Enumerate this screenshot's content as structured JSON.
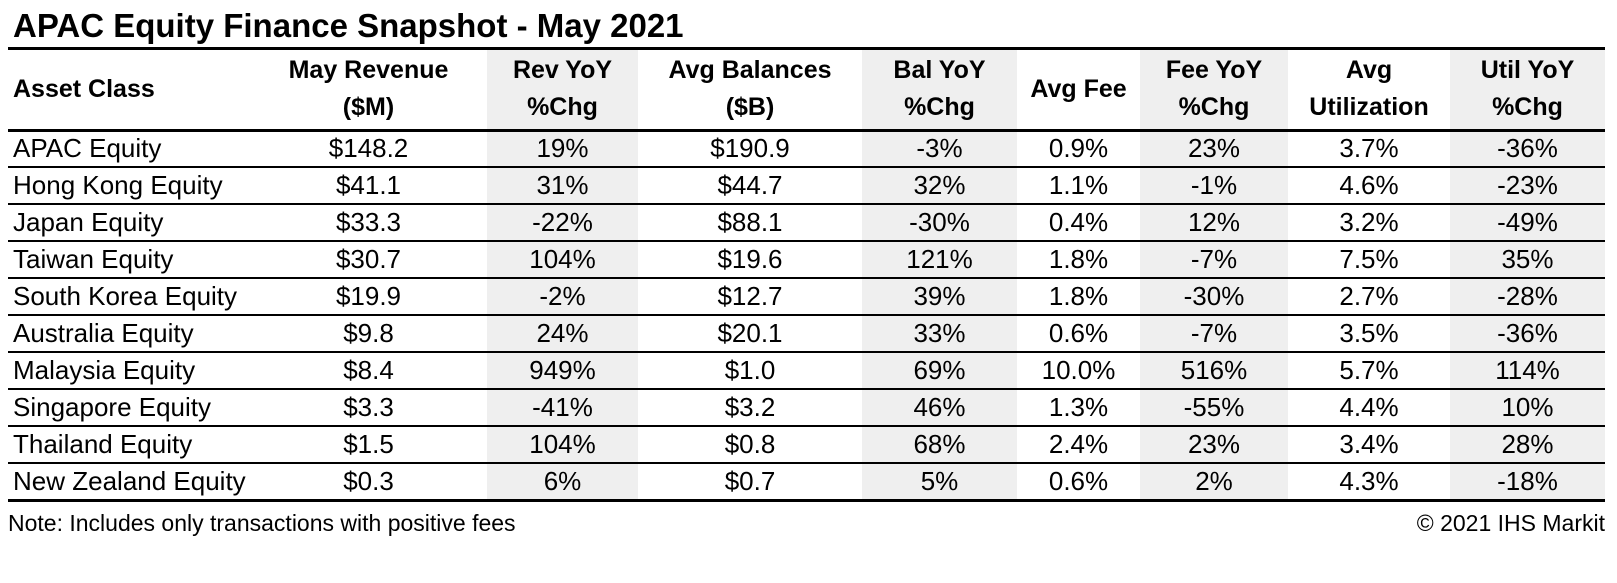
{
  "title": "APAC Equity Finance Snapshot - May 2021",
  "colors": {
    "background": "#ffffff",
    "text": "#000000",
    "border": "#000000",
    "shaded_column": "#efefef"
  },
  "chart_data": {
    "type": "table",
    "title": "APAC Equity Finance Snapshot - May 2021",
    "layout": {
      "shaded_columns": [
        "rev-yoy",
        "bal-yoy",
        "fee-yoy",
        "util-yoy"
      ],
      "gridlines": "horizontal-only"
    },
    "columns": [
      {
        "id": "asset-class",
        "lines": [
          "Asset Class"
        ],
        "shaded": false,
        "align": "left"
      },
      {
        "id": "may-revenue",
        "lines": [
          "May Revenue",
          "($M)"
        ],
        "shaded": false,
        "align": "center"
      },
      {
        "id": "rev-yoy",
        "lines": [
          "Rev YoY",
          "%Chg"
        ],
        "shaded": true,
        "align": "center"
      },
      {
        "id": "avg-balances",
        "lines": [
          "Avg Balances",
          "($B)"
        ],
        "shaded": false,
        "align": "center"
      },
      {
        "id": "bal-yoy",
        "lines": [
          "Bal YoY",
          "%Chg"
        ],
        "shaded": true,
        "align": "center"
      },
      {
        "id": "avg-fee",
        "lines": [
          "Avg Fee"
        ],
        "shaded": false,
        "align": "center"
      },
      {
        "id": "fee-yoy",
        "lines": [
          "Fee YoY",
          "%Chg"
        ],
        "shaded": true,
        "align": "center"
      },
      {
        "id": "avg-utilization",
        "lines": [
          "Avg",
          "Utilization"
        ],
        "shaded": false,
        "align": "center"
      },
      {
        "id": "util-yoy",
        "lines": [
          "Util YoY",
          "%Chg"
        ],
        "shaded": true,
        "align": "center"
      }
    ],
    "rows": [
      [
        "APAC Equity",
        "$148.2",
        "19%",
        "$190.9",
        "-3%",
        "0.9%",
        "23%",
        "3.7%",
        "-36%"
      ],
      [
        "Hong Kong Equity",
        "$41.1",
        "31%",
        "$44.7",
        "32%",
        "1.1%",
        "-1%",
        "4.6%",
        "-23%"
      ],
      [
        "Japan Equity",
        "$33.3",
        "-22%",
        "$88.1",
        "-30%",
        "0.4%",
        "12%",
        "3.2%",
        "-49%"
      ],
      [
        "Taiwan Equity",
        "$30.7",
        "104%",
        "$19.6",
        "121%",
        "1.8%",
        "-7%",
        "7.5%",
        "35%"
      ],
      [
        "South Korea Equity",
        "$19.9",
        "-2%",
        "$12.7",
        "39%",
        "1.8%",
        "-30%",
        "2.7%",
        "-28%"
      ],
      [
        "Australia Equity",
        "$9.8",
        "24%",
        "$20.1",
        "33%",
        "0.6%",
        "-7%",
        "3.5%",
        "-36%"
      ],
      [
        "Malaysia Equity",
        "$8.4",
        "949%",
        "$1.0",
        "69%",
        "10.0%",
        "516%",
        "5.7%",
        "114%"
      ],
      [
        "Singapore Equity",
        "$3.3",
        "-41%",
        "$3.2",
        "46%",
        "1.3%",
        "-55%",
        "4.4%",
        "10%"
      ],
      [
        "Thailand Equity",
        "$1.5",
        "104%",
        "$0.8",
        "68%",
        "2.4%",
        "23%",
        "3.4%",
        "28%"
      ],
      [
        "New Zealand Equity",
        "$0.3",
        "6%",
        "$0.7",
        "5%",
        "0.6%",
        "2%",
        "4.3%",
        "-18%"
      ]
    ]
  },
  "footer": {
    "note": "Note: Includes only transactions with positive fees",
    "copyright": "© 2021 IHS Markit"
  }
}
